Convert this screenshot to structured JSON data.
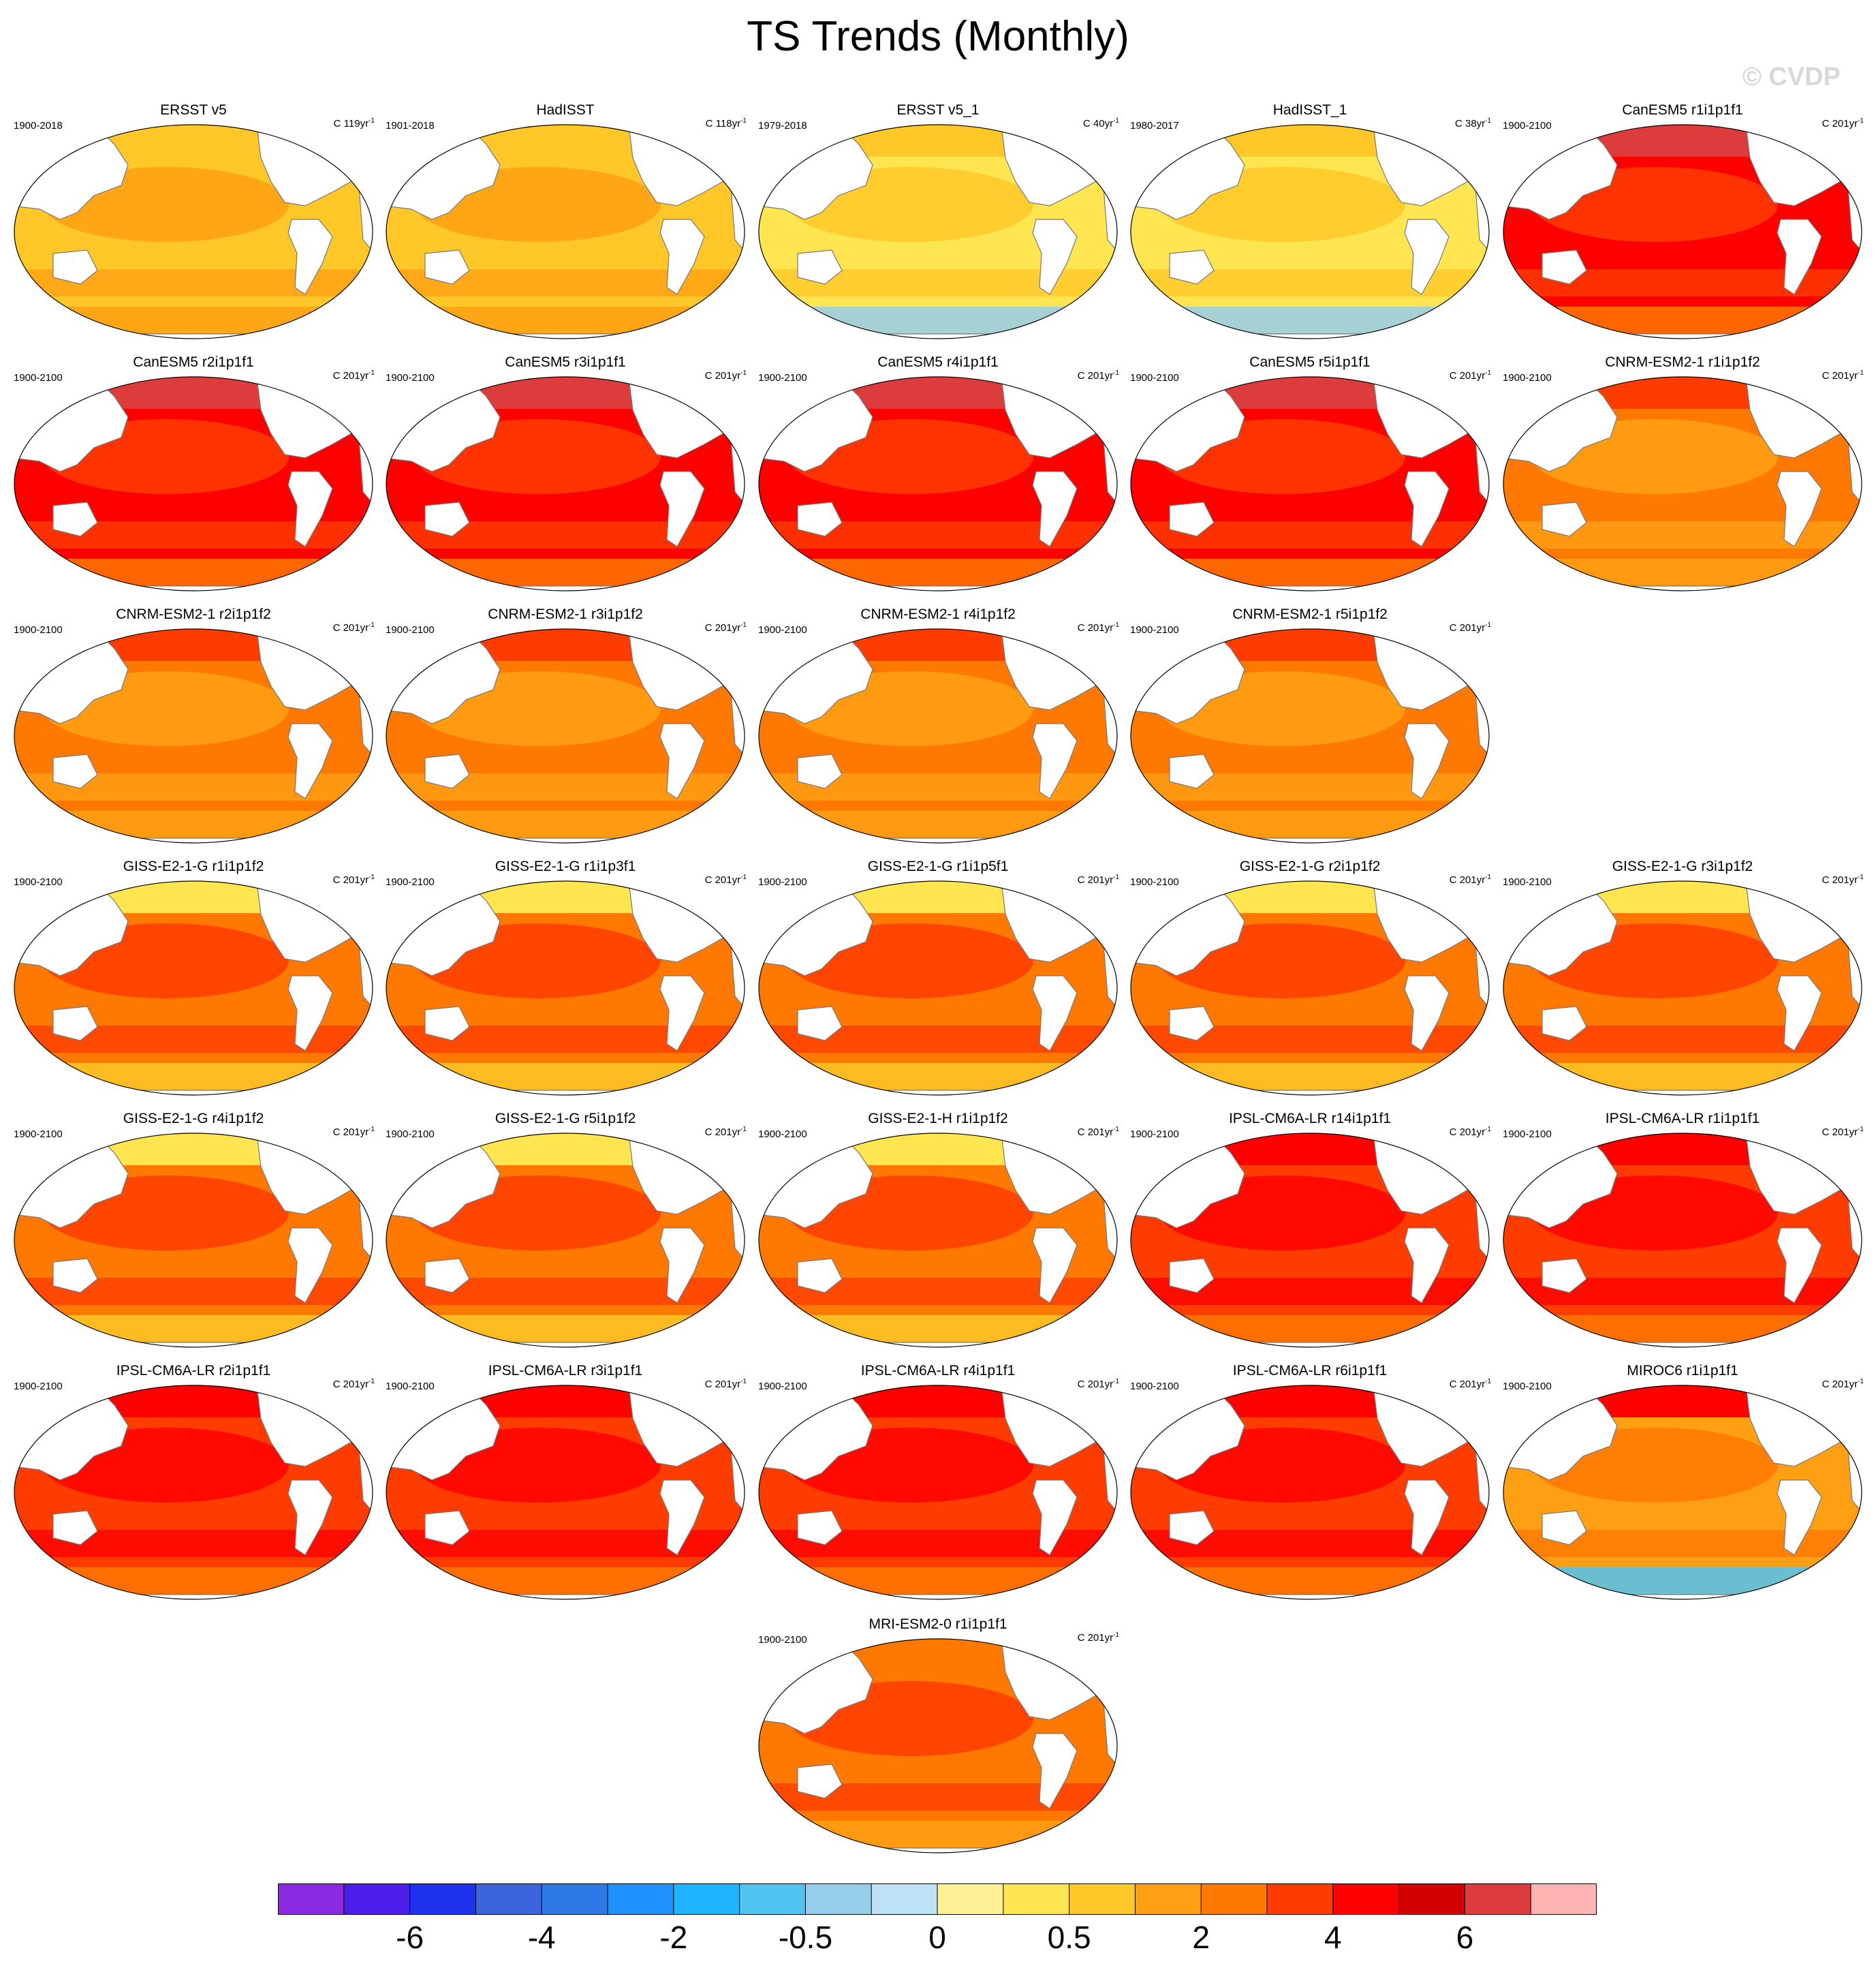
{
  "title": "TS Trends (Monthly)",
  "watermark": "© CVDP",
  "panels": [
    {
      "title": "ERSST v5",
      "years": "1900-2018",
      "units": "C 119yr",
      "sup": "-1",
      "scheme": "obs1"
    },
    {
      "title": "HadISST",
      "years": "1901-2018",
      "units": "C 118yr",
      "sup": "-1",
      "scheme": "obs1"
    },
    {
      "title": "ERSST v5_1",
      "years": "1979-2018",
      "units": "C 40yr",
      "sup": "-1",
      "scheme": "obs2"
    },
    {
      "title": "HadISST_1",
      "years": "1980-2017",
      "units": "C 38yr",
      "sup": "-1",
      "scheme": "obs2"
    },
    {
      "title": "CanESM5 r1i1p1f1",
      "years": "1900-2100",
      "units": "C 201yr",
      "sup": "-1",
      "scheme": "can"
    },
    {
      "title": "CanESM5 r2i1p1f1",
      "years": "1900-2100",
      "units": "C 201yr",
      "sup": "-1",
      "scheme": "can"
    },
    {
      "title": "CanESM5 r3i1p1f1",
      "years": "1900-2100",
      "units": "C 201yr",
      "sup": "-1",
      "scheme": "can"
    },
    {
      "title": "CanESM5 r4i1p1f1",
      "years": "1900-2100",
      "units": "C 201yr",
      "sup": "-1",
      "scheme": "can"
    },
    {
      "title": "CanESM5 r5i1p1f1",
      "years": "1900-2100",
      "units": "C 201yr",
      "sup": "-1",
      "scheme": "can"
    },
    {
      "title": "CNRM-ESM2-1 r1i1p1f2",
      "years": "1900-2100",
      "units": "C 201yr",
      "sup": "-1",
      "scheme": "cnrm"
    },
    {
      "title": "CNRM-ESM2-1 r2i1p1f2",
      "years": "1900-2100",
      "units": "C 201yr",
      "sup": "-1",
      "scheme": "cnrm"
    },
    {
      "title": "CNRM-ESM2-1 r3i1p1f2",
      "years": "1900-2100",
      "units": "C 201yr",
      "sup": "-1",
      "scheme": "cnrm"
    },
    {
      "title": "CNRM-ESM2-1 r4i1p1f2",
      "years": "1900-2100",
      "units": "C 201yr",
      "sup": "-1",
      "scheme": "cnrm"
    },
    {
      "title": "CNRM-ESM2-1 r5i1p1f2",
      "years": "1900-2100",
      "units": "C 201yr",
      "sup": "-1",
      "scheme": "cnrm"
    },
    null,
    {
      "title": "GISS-E2-1-G r1i1p1f2",
      "years": "1900-2100",
      "units": "C 201yr",
      "sup": "-1",
      "scheme": "giss"
    },
    {
      "title": "GISS-E2-1-G r1i1p3f1",
      "years": "1900-2100",
      "units": "C 201yr",
      "sup": "-1",
      "scheme": "giss"
    },
    {
      "title": "GISS-E2-1-G r1i1p5f1",
      "years": "1900-2100",
      "units": "C 201yr",
      "sup": "-1",
      "scheme": "giss"
    },
    {
      "title": "GISS-E2-1-G r2i1p1f2",
      "years": "1900-2100",
      "units": "C 201yr",
      "sup": "-1",
      "scheme": "giss"
    },
    {
      "title": "GISS-E2-1-G r3i1p1f2",
      "years": "1900-2100",
      "units": "C 201yr",
      "sup": "-1",
      "scheme": "giss"
    },
    {
      "title": "GISS-E2-1-G r4i1p1f2",
      "years": "1900-2100",
      "units": "C 201yr",
      "sup": "-1",
      "scheme": "giss"
    },
    {
      "title": "GISS-E2-1-G r5i1p1f2",
      "years": "1900-2100",
      "units": "C 201yr",
      "sup": "-1",
      "scheme": "giss"
    },
    {
      "title": "GISS-E2-1-H r1i1p1f2",
      "years": "1900-2100",
      "units": "C 201yr",
      "sup": "-1",
      "scheme": "giss"
    },
    {
      "title": "IPSL-CM6A-LR r14i1p1f1",
      "years": "1900-2100",
      "units": "C 201yr",
      "sup": "-1",
      "scheme": "ipsl"
    },
    {
      "title": "IPSL-CM6A-LR r1i1p1f1",
      "years": "1900-2100",
      "units": "C 201yr",
      "sup": "-1",
      "scheme": "ipsl"
    },
    {
      "title": "IPSL-CM6A-LR r2i1p1f1",
      "years": "1900-2100",
      "units": "C 201yr",
      "sup": "-1",
      "scheme": "ipsl"
    },
    {
      "title": "IPSL-CM6A-LR r3i1p1f1",
      "years": "1900-2100",
      "units": "C 201yr",
      "sup": "-1",
      "scheme": "ipsl"
    },
    {
      "title": "IPSL-CM6A-LR r4i1p1f1",
      "years": "1900-2100",
      "units": "C 201yr",
      "sup": "-1",
      "scheme": "ipsl"
    },
    {
      "title": "IPSL-CM6A-LR r6i1p1f1",
      "years": "1900-2100",
      "units": "C 201yr",
      "sup": "-1",
      "scheme": "ipsl"
    },
    {
      "title": "MIROC6 r1i1p1f1",
      "years": "1900-2100",
      "units": "C 201yr",
      "sup": "-1",
      "scheme": "miroc"
    },
    null,
    null,
    {
      "title": "MRI-ESM2-0 r1i1p1f1",
      "years": "1900-2100",
      "units": "C 201yr",
      "sup": "-1",
      "scheme": "mri"
    }
  ],
  "colorbar": {
    "colors": [
      "#8a2be2",
      "#4b1eea",
      "#1e32f0",
      "#3c64dc",
      "#2d7ae6",
      "#1e90ff",
      "#1eb4ff",
      "#50c3f0",
      "#96cdeb",
      "#bde1f5",
      "#fff096",
      "#ffe650",
      "#ffc828",
      "#ffa014",
      "#ff7800",
      "#ff3c00",
      "#ff0000",
      "#d20000",
      "#dc3c3c",
      "#ffb4b4"
    ],
    "labels": [
      "-6",
      "-4",
      "-2",
      "-0.5",
      "0",
      "0.5",
      "2",
      "4",
      "6"
    ]
  },
  "schemes": {
    "obs1": {
      "base": "#ffc828",
      "band": "#ffa014",
      "pole": "#ffa014",
      "north": "#ffc828"
    },
    "obs2": {
      "base": "#ffe650",
      "band": "#ffc828",
      "pole": "#96cdeb",
      "north": "#ffc828"
    },
    "can": {
      "base": "#ff0000",
      "band": "#ff3c00",
      "pole": "#ff7800",
      "north": "#dc3c3c"
    },
    "cnrm": {
      "base": "#ff7800",
      "band": "#ffa014",
      "pole": "#ffa014",
      "north": "#ff3c00"
    },
    "giss": {
      "base": "#ff7800",
      "band": "#ff3c00",
      "pole": "#ffc828",
      "north": "#ffe650"
    },
    "ipsl": {
      "base": "#ff3c00",
      "band": "#ff0000",
      "pole": "#ff7800",
      "north": "#ff0000"
    },
    "miroc": {
      "base": "#ffa014",
      "band": "#ff7800",
      "pole": "#50c3f0",
      "north": "#ff0000"
    },
    "mri": {
      "base": "#ff7800",
      "band": "#ff3c00",
      "pole": "#ffa014",
      "north": "#ff7800"
    }
  }
}
